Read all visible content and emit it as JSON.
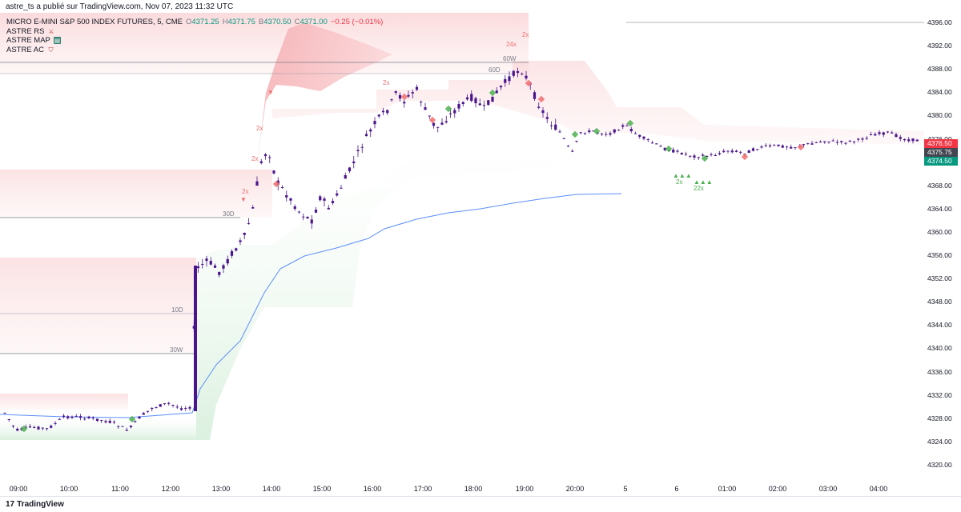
{
  "header": {
    "attribution": "astre_ts a publié sur TradingView.com, Nov 07, 2023 11:32 UTC"
  },
  "legend": {
    "symbol": "MICRO E-MINI S&P 500 INDEX FUTURES, 5, CME",
    "o_label": "O",
    "o_value": "4371.25",
    "h_label": "H",
    "h_value": "4371.75",
    "b_label": "B",
    "b_value": "4370.50",
    "c_label": "C",
    "c_value": "4371.00",
    "change": "−0.25 (−0.01%)",
    "indicators": [
      {
        "name": "ASTRE RS",
        "icon": "crossed-swords-icon"
      },
      {
        "name": "ASTRE MAP",
        "icon": "map-icon"
      },
      {
        "name": "ASTRE AC",
        "icon": "shield-icon"
      }
    ]
  },
  "level_labels": {
    "60W": "60W",
    "60D": "60D",
    "30D": "30D",
    "10D": "10D",
    "30W": "30W"
  },
  "markers": {
    "two_x": "2x",
    "two_two_x": "22x",
    "two_four_x": "24x"
  },
  "price_axis": {
    "ticks": [
      "4396.00",
      "4392.00",
      "4388.00",
      "4384.00",
      "4380.00",
      "4376.00",
      "4372.00",
      "4368.00",
      "4364.00",
      "4360.00",
      "4356.00",
      "4352.00",
      "4348.00",
      "4344.00",
      "4340.00",
      "4336.00",
      "4332.00",
      "4328.00",
      "4324.00",
      "4320.00"
    ],
    "badges": [
      {
        "value": "4376.50",
        "color": "#f23645"
      },
      {
        "value": "4375.75",
        "color": "#434651"
      },
      {
        "value": "4374.50",
        "color": "#089981"
      }
    ]
  },
  "time_axis": {
    "ticks": [
      "09:00",
      "10:00",
      "11:00",
      "12:00",
      "13:00",
      "14:00",
      "15:00",
      "16:00",
      "17:00",
      "18:00",
      "19:00",
      "20:00",
      "5",
      "6",
      "01:00",
      "02:00",
      "03:00",
      "04:00"
    ]
  },
  "footer": {
    "brand": "TradingView",
    "logo_mark": "17"
  },
  "colors": {
    "candle": "#4a148c",
    "vwap": "#5b8ff9",
    "resistance_zone": "#f8d7d9",
    "support_zone": "#e3f3e6",
    "up_marker": "#4caf50",
    "down_marker": "#f06e6e",
    "accent_line": "#131722"
  }
}
